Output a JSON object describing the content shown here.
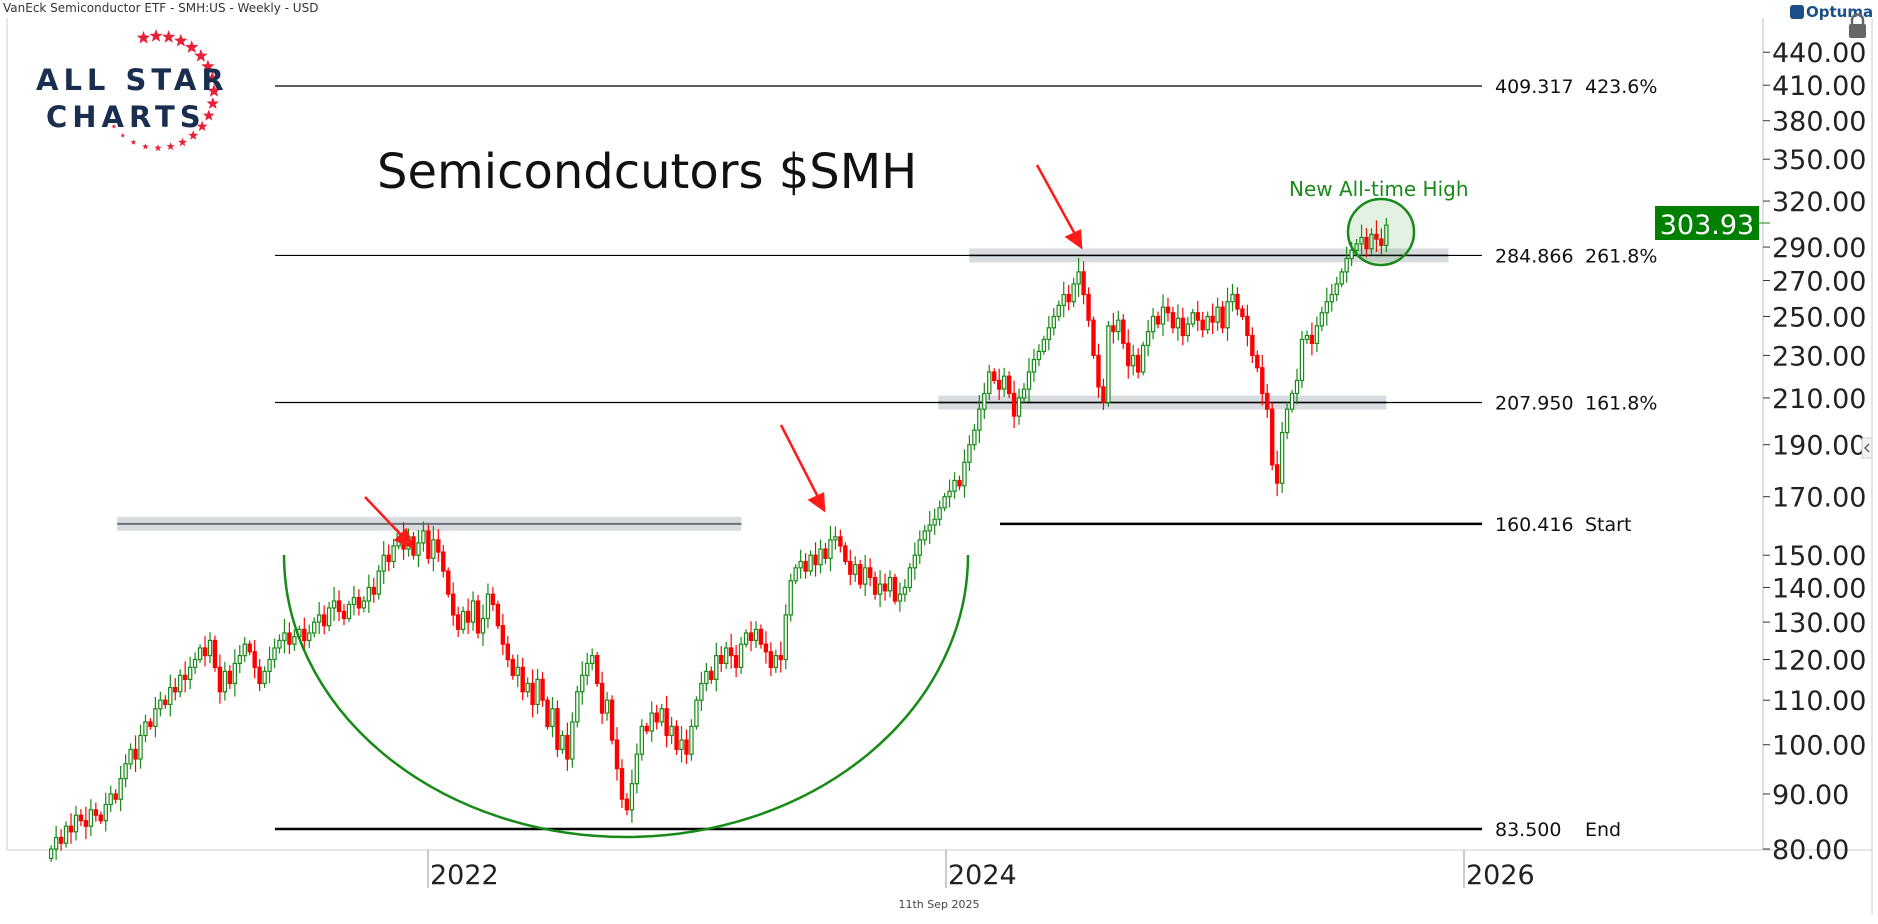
{
  "header": {
    "title": "VanEck Semiconductor ETF - SMH:US - Weekly - USD",
    "brand": "Optuma",
    "date": "11th Sep 2025"
  },
  "logo": {
    "line1": "ALL STAR",
    "line2": "CHARTS"
  },
  "colors": {
    "up": "#178a17",
    "down": "#ff0000",
    "band": "#d4d8dd",
    "accent": "#008000",
    "arrow": "#ff1a1a"
  },
  "chart_data": {
    "type": "candlestick",
    "title": "Semicondcutors $SMH",
    "annotation": "New All-time High",
    "last_price": "303.93",
    "frequency": "weekly",
    "start_year": 2020.545,
    "closes": [
      80,
      82,
      81,
      84,
      83,
      86,
      85,
      84,
      87,
      86,
      85,
      88,
      90,
      89,
      93,
      96,
      99,
      97,
      102,
      105,
      104,
      108,
      110,
      109,
      113,
      112,
      116,
      115,
      118,
      120,
      123,
      121,
      125,
      118,
      112,
      117,
      114,
      119,
      121,
      124,
      122,
      118,
      114,
      117,
      120,
      123,
      125,
      127,
      124,
      126,
      128,
      125,
      127,
      130,
      132,
      129,
      134,
      136,
      133,
      131,
      135,
      137,
      134,
      136,
      140,
      138,
      145,
      150,
      148,
      153,
      157,
      152,
      156,
      150,
      154,
      158,
      149,
      155,
      151,
      145,
      138,
      132,
      128,
      133,
      130,
      136,
      127,
      131,
      138,
      135,
      129,
      124,
      120,
      116,
      118,
      112,
      114,
      109,
      115,
      110,
      104,
      108,
      99,
      102,
      97,
      105,
      112,
      116,
      119,
      121,
      114,
      107,
      110,
      101,
      95,
      89,
      87,
      92,
      98,
      104,
      103,
      107,
      105,
      108,
      102,
      104,
      99,
      101,
      98,
      104,
      110,
      114,
      117,
      115,
      121,
      119,
      123,
      121,
      118,
      124,
      127,
      125,
      128,
      124,
      122,
      118,
      121,
      120,
      132,
      142,
      146,
      148,
      145,
      150,
      147,
      152,
      149,
      155,
      156,
      153,
      148,
      144,
      147,
      141,
      146,
      143,
      138,
      141,
      139,
      143,
      136,
      138,
      140,
      146,
      150,
      155,
      158,
      160,
      162,
      166,
      170,
      172,
      176,
      174,
      183,
      190,
      196,
      205,
      212,
      222,
      218,
      214,
      220,
      212,
      202,
      210,
      214,
      222,
      228,
      232,
      238,
      244,
      250,
      256,
      262,
      258,
      268,
      275,
      262,
      248,
      230,
      215,
      208,
      245,
      242,
      248,
      236,
      225,
      230,
      222,
      235,
      242,
      250,
      246,
      255,
      252,
      244,
      249,
      240,
      246,
      252,
      248,
      243,
      250,
      247,
      255,
      244,
      258,
      262,
      254,
      250,
      240,
      230,
      224,
      212,
      205,
      182,
      175,
      195,
      205,
      212,
      218,
      238,
      240,
      236,
      245,
      252,
      258,
      262,
      268,
      275,
      283,
      288,
      292,
      296,
      289,
      298,
      295,
      291,
      303.93
    ],
    "y_scale": "log",
    "ylim": [
      80,
      450
    ],
    "y_ticks": [
      "440.00",
      "410.00",
      "380.00",
      "350.00",
      "320.00",
      "290.00",
      "270.00",
      "250.00",
      "230.00",
      "210.00",
      "190.00",
      "170.00",
      "150.00",
      "140.00",
      "130.00",
      "120.00",
      "110.00",
      "100.00",
      "90.00",
      "80.00"
    ],
    "x_ticks": [
      "2022",
      "2024",
      "2026"
    ],
    "xlim": [
      2020.5,
      2026.5
    ],
    "levels": [
      {
        "price": 409.317,
        "label": "409.317",
        "tag": "423.6%"
      },
      {
        "price": 284.866,
        "label": "284.866",
        "tag": "261.8%"
      },
      {
        "price": 207.95,
        "label": "207.950",
        "tag": "161.8%"
      },
      {
        "price": 160.416,
        "label": "160.416",
        "tag": "Start"
      },
      {
        "price": 83.5,
        "label": "83.500",
        "tag": "End"
      }
    ],
    "zones": [
      {
        "price": 160.416,
        "from": 2020.8,
        "to": 2023.21
      },
      {
        "price": 207.95,
        "from": 2023.97,
        "to": 2025.7
      },
      {
        "price": 284.866,
        "from": 2024.09,
        "to": 2025.94
      }
    ]
  }
}
